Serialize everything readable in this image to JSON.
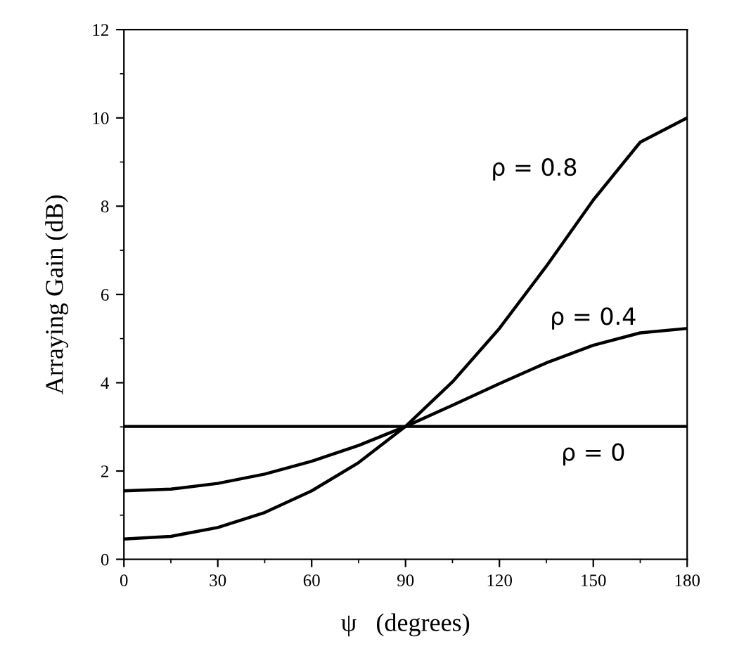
{
  "chart_data": {
    "type": "line",
    "xlabel": "ψ   (degrees)",
    "ylabel": "Arraying Gain (dB)",
    "x": [
      0,
      15,
      30,
      45,
      60,
      75,
      90,
      105,
      120,
      135,
      150,
      165,
      180
    ],
    "series": [
      {
        "name": "ρ = 0.8",
        "color": "#000000",
        "values": [
          0.46,
          0.52,
          0.72,
          1.06,
          1.55,
          2.19,
          3.01,
          4.02,
          5.23,
          6.64,
          8.14,
          9.45,
          10.0
        ]
      },
      {
        "name": "ρ = 0.4",
        "color": "#000000",
        "values": [
          1.55,
          1.59,
          1.72,
          1.93,
          2.22,
          2.58,
          3.01,
          3.49,
          3.98,
          4.45,
          4.85,
          5.13,
          5.23
        ]
      },
      {
        "name": "ρ = 0",
        "color": "#000000",
        "values": [
          3.01,
          3.01,
          3.01,
          3.01,
          3.01,
          3.01,
          3.01,
          3.01,
          3.01,
          3.01,
          3.01,
          3.01,
          3.01
        ]
      }
    ],
    "xlim": [
      0,
      180
    ],
    "ylim": [
      0,
      12
    ],
    "xticks": [
      0,
      30,
      60,
      90,
      120,
      150,
      180
    ],
    "yticks": [
      0,
      2,
      4,
      6,
      8,
      10,
      12
    ],
    "grid": false,
    "legend": false,
    "marker": "none",
    "line_style": "solid"
  }
}
